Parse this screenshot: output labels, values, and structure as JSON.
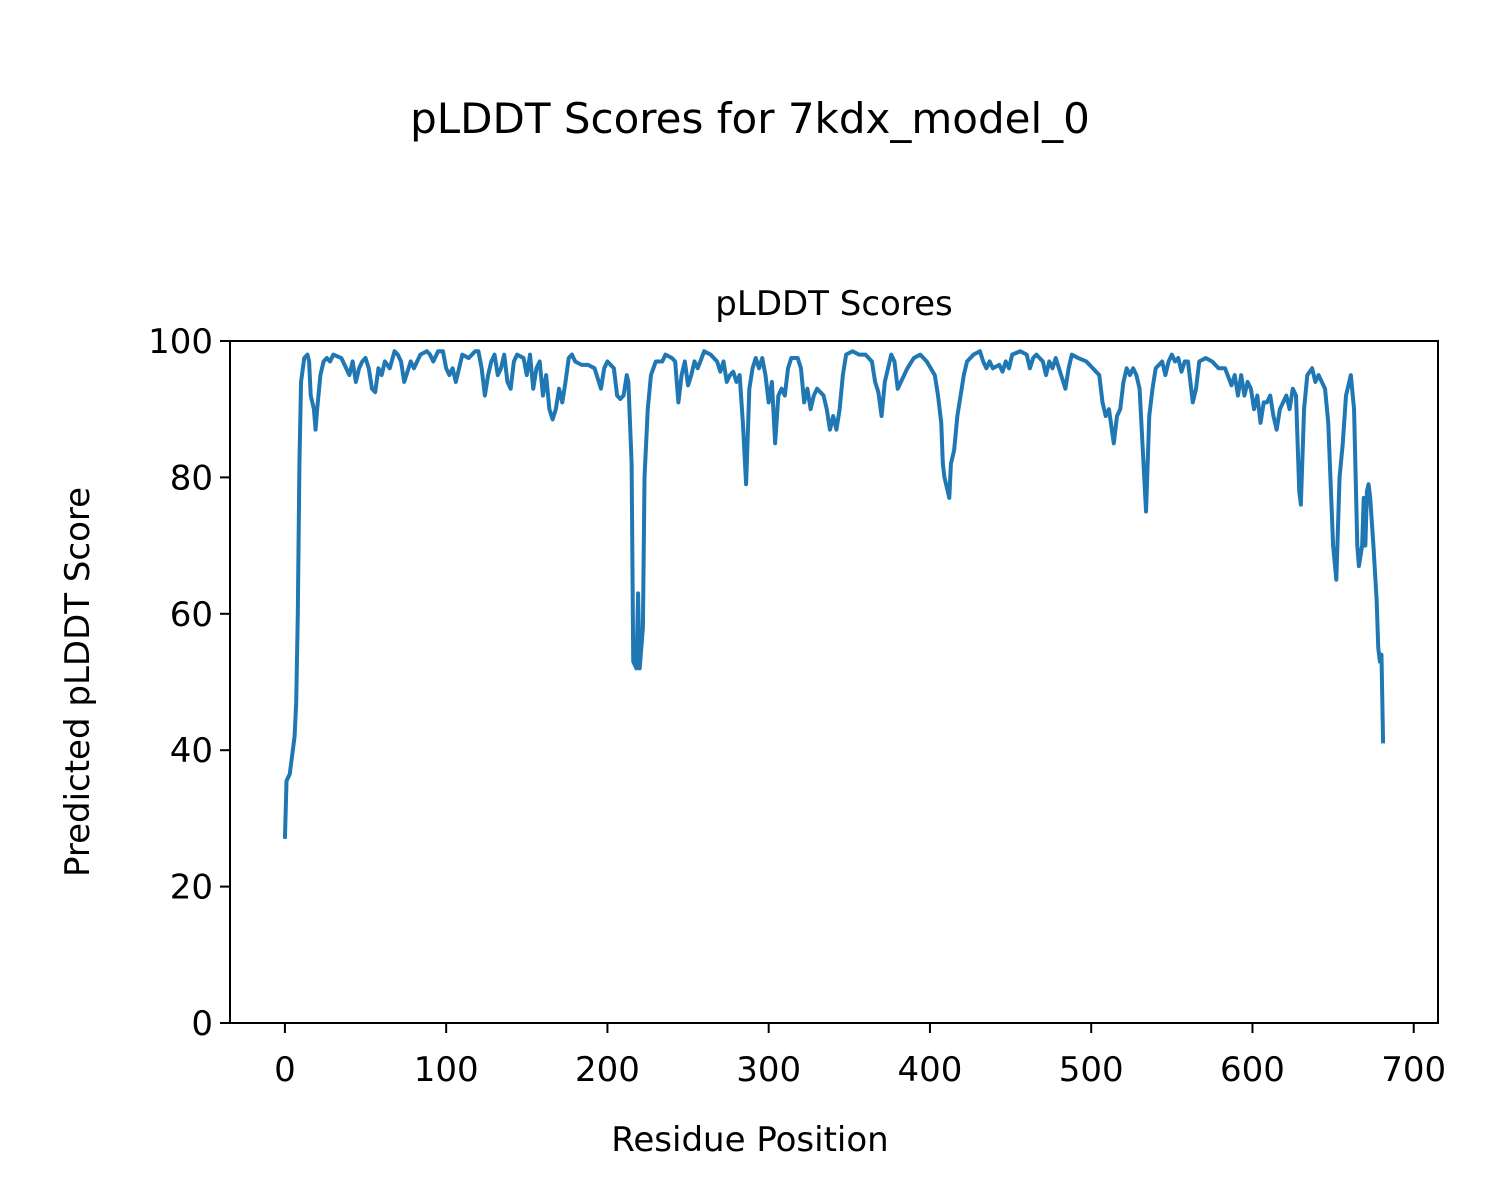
{
  "chart_data": {
    "type": "line",
    "suptitle": "pLDDT Scores for 7kdx_model_0",
    "title": "pLDDT Scores",
    "xlabel": "Residue Position",
    "ylabel": "Predicted pLDDT Score",
    "color": "#1f77b4",
    "xlim": [
      -34.05,
      715.05
    ],
    "xticks": [
      0,
      100,
      200,
      300,
      400,
      500,
      600,
      700
    ],
    "ylim": [
      0,
      100
    ],
    "yticks": [
      0,
      20,
      40,
      60,
      80,
      100
    ],
    "grid": false,
    "x": [
      0,
      1,
      3,
      6,
      7,
      8,
      9,
      10,
      12,
      14,
      15,
      16,
      18,
      19,
      20,
      22,
      24,
      26,
      28,
      30,
      35,
      38,
      40,
      42,
      44,
      46,
      48,
      50,
      52,
      54,
      56,
      58,
      60,
      62,
      65,
      68,
      70,
      72,
      74,
      76,
      78,
      80,
      84,
      88,
      90,
      92,
      95,
      98,
      100,
      102,
      104,
      106,
      108,
      110,
      114,
      118,
      120,
      122,
      124,
      126,
      128,
      130,
      132,
      134,
      136,
      138,
      140,
      142,
      144,
      148,
      150,
      152,
      154,
      156,
      158,
      160,
      162,
      164,
      166,
      168,
      170,
      172,
      174,
      176,
      178,
      180,
      184,
      188,
      192,
      196,
      198,
      200,
      204,
      206,
      208,
      210,
      212,
      213,
      215,
      216,
      218,
      219,
      220,
      222,
      223,
      225,
      227,
      230,
      234,
      236,
      240,
      242,
      244,
      246,
      248,
      250,
      252,
      254,
      256,
      260,
      264,
      268,
      270,
      272,
      274,
      276,
      278,
      280,
      282,
      284,
      286,
      288,
      290,
      292,
      294,
      296,
      298,
      300,
      302,
      304,
      306,
      308,
      310,
      312,
      314,
      318,
      320,
      322,
      324,
      326,
      328,
      330,
      334,
      336,
      338,
      340,
      342,
      344,
      346,
      348,
      352,
      356,
      360,
      364,
      366,
      368,
      370,
      372,
      374,
      376,
      378,
      380,
      382,
      384,
      386,
      390,
      394,
      398,
      403,
      405,
      407,
      408,
      409,
      411,
      412,
      413,
      415,
      417,
      419,
      421,
      423,
      427,
      431,
      433,
      435,
      437,
      439,
      443,
      445,
      447,
      449,
      451,
      456,
      460,
      462,
      464,
      466,
      470,
      472,
      474,
      476,
      478,
      484,
      486,
      488,
      492,
      497,
      501,
      505,
      507,
      509,
      511,
      514,
      516,
      518,
      520,
      522,
      524,
      526,
      528,
      530,
      532,
      534,
      536,
      538,
      540,
      544,
      546,
      548,
      550,
      552,
      554,
      556,
      558,
      560,
      563,
      565,
      567,
      571,
      575,
      579,
      583,
      587,
      589,
      591,
      593,
      595,
      597,
      599,
      601,
      603,
      605,
      607,
      609,
      611,
      613,
      615,
      617,
      619,
      621,
      623,
      625,
      627,
      629,
      630,
      632,
      634,
      637,
      639,
      641,
      643,
      645,
      647,
      650,
      652,
      654,
      656,
      658,
      661,
      663,
      664,
      665,
      666,
      668,
      669,
      670,
      671,
      672,
      673,
      675,
      677,
      678,
      679,
      680,
      681
    ],
    "values": [
      27,
      35.5,
      36.5,
      42,
      47,
      60,
      82,
      94,
      97.5,
      98,
      97,
      92,
      90,
      87,
      90,
      95,
      97,
      97.5,
      97,
      98,
      97.5,
      96,
      95,
      97,
      94,
      96,
      97,
      97.5,
      96,
      93,
      92.5,
      96,
      95,
      97,
      96,
      98.5,
      98,
      97,
      94,
      95.5,
      97,
      96,
      98,
      98.5,
      98,
      97,
      98.5,
      98.5,
      96,
      95,
      96,
      94,
      96,
      98,
      97.5,
      98.5,
      98.5,
      96,
      92,
      95,
      97,
      98,
      95,
      96,
      98,
      94,
      93,
      97,
      98,
      97.5,
      95,
      98,
      93,
      96,
      97,
      92,
      95,
      90,
      88.5,
      90,
      93,
      91,
      94,
      97.5,
      98,
      97,
      96.5,
      96.5,
      96,
      93,
      96,
      97,
      96,
      92,
      91.5,
      92,
      95,
      94,
      82,
      53,
      52,
      63,
      52,
      58,
      80,
      90,
      95,
      97,
      97,
      98,
      97.5,
      97,
      91,
      95,
      97,
      93.5,
      95,
      97,
      96,
      98.5,
      98,
      97,
      95.5,
      97,
      94,
      95,
      95.5,
      94,
      95,
      88,
      79,
      93,
      96,
      97.5,
      96,
      97.5,
      95,
      91,
      94,
      85,
      92,
      93,
      92,
      96,
      97.5,
      97.5,
      96,
      91,
      93,
      90,
      92,
      93,
      92,
      90,
      87,
      89,
      87,
      90,
      95,
      98,
      98.5,
      98,
      98,
      97,
      94,
      92.5,
      89,
      94,
      96,
      98,
      97,
      93,
      94,
      95,
      96,
      97.5,
      98,
      97,
      95,
      92,
      88,
      82,
      80,
      78,
      77,
      82,
      84,
      89,
      92,
      95,
      97,
      98,
      98.5,
      97,
      96,
      97,
      96,
      96.5,
      95.5,
      97,
      96,
      98,
      98.5,
      98,
      96,
      97.5,
      98,
      97,
      95,
      97,
      96,
      97.5,
      93,
      96,
      98,
      97.5,
      97,
      96,
      95,
      91,
      89,
      90,
      85,
      89,
      90,
      94,
      96,
      95,
      96,
      95,
      93,
      84,
      75,
      89,
      93,
      96,
      97,
      95,
      97,
      98,
      97,
      97.5,
      95.5,
      97,
      97,
      91,
      93,
      97,
      97.5,
      97,
      96,
      96,
      93.5,
      95,
      92,
      95,
      92,
      94,
      93,
      90,
      92,
      88,
      91,
      91,
      92,
      89,
      87,
      90,
      91,
      92,
      90,
      93,
      92,
      78,
      76,
      90,
      95,
      96,
      94,
      95,
      94,
      93,
      88,
      70,
      65,
      80,
      85,
      92,
      95,
      90,
      80,
      70,
      67,
      70,
      77,
      70,
      78,
      79,
      77,
      70,
      62,
      55,
      53,
      54,
      41
    ]
  }
}
